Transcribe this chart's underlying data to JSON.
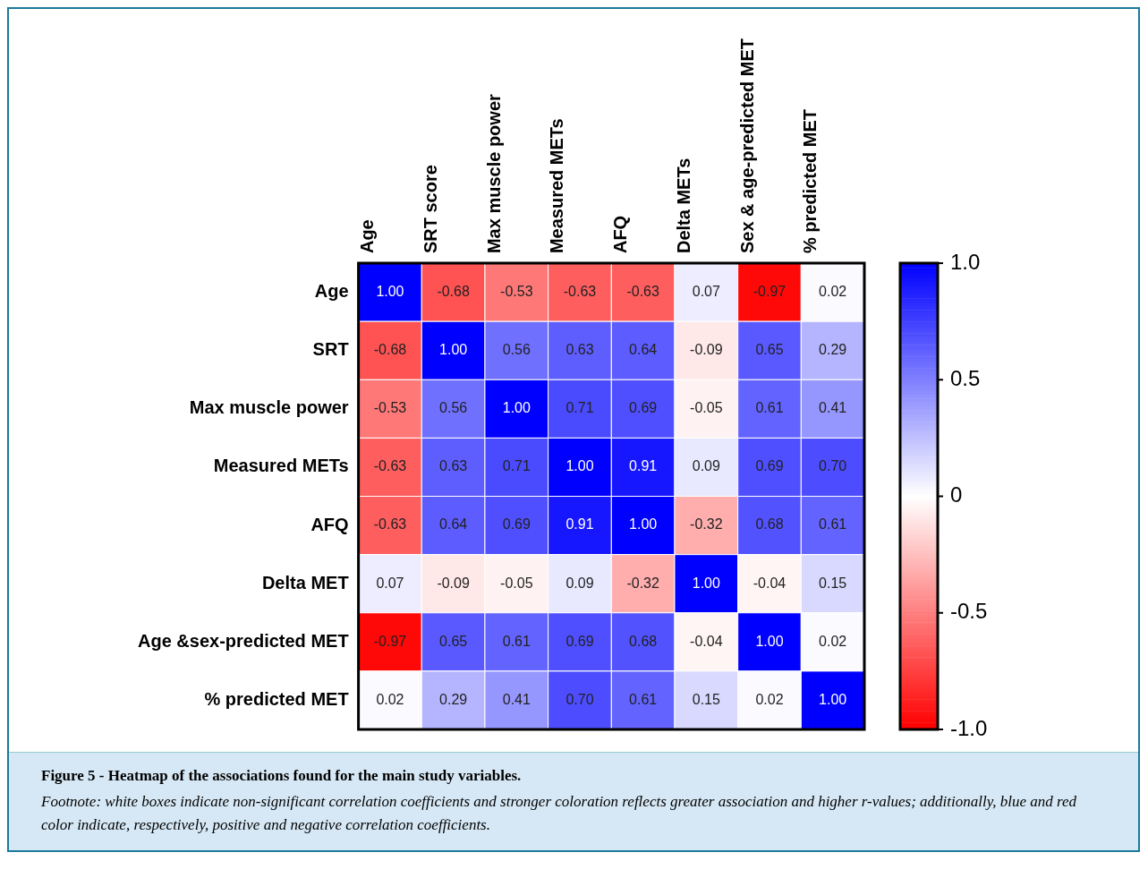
{
  "chart_data": {
    "type": "heatmap",
    "title": "Figure 5 - Heatmap of the associations found for the main study variables.",
    "annotations": [
      "Footnote: white boxes indicate non-significant correlation coefficients and stronger coloration reflects greater association and higher r-values; additionally, blue and red color indicate, respectively, positive and negative correlation coefficients."
    ],
    "categories": [
      "Age",
      "SRT score",
      "Max muscle power",
      "Measured METs",
      "AFQ",
      "Delta METs",
      "Sex & age-predicted MET",
      "% predicted MET"
    ],
    "y_categories": [
      "Age",
      "SRT",
      "Max muscle power",
      "Measured METs",
      "AFQ",
      "Delta MET",
      "Age &sex-predicted MET",
      "% predicted MET"
    ],
    "cells": [
      [
        1.0,
        -0.68,
        -0.53,
        -0.63,
        -0.63,
        0.07,
        -0.97,
        0.02
      ],
      [
        -0.68,
        1.0,
        0.56,
        0.63,
        0.64,
        -0.09,
        0.65,
        0.29
      ],
      [
        -0.53,
        0.56,
        1.0,
        0.71,
        0.69,
        -0.05,
        0.61,
        0.41
      ],
      [
        -0.63,
        0.63,
        0.71,
        1.0,
        0.91,
        0.09,
        0.69,
        0.7
      ],
      [
        -0.63,
        0.64,
        0.69,
        0.91,
        1.0,
        -0.32,
        0.68,
        0.61
      ],
      [
        0.07,
        -0.09,
        -0.05,
        0.09,
        -0.32,
        1.0,
        -0.04,
        0.15
      ],
      [
        -0.97,
        0.65,
        0.61,
        0.69,
        0.68,
        -0.04,
        1.0,
        0.02
      ],
      [
        0.02,
        0.29,
        0.41,
        0.7,
        0.61,
        0.15,
        0.02,
        1.0
      ]
    ],
    "cell_labels": [
      [
        "1.00",
        "-0.68",
        "-0.53",
        "-0.63",
        "-0.63",
        "0.07",
        "-0.97",
        "0.02"
      ],
      [
        "-0.68",
        "1.00",
        "0.56",
        "0.63",
        "0.64",
        "-0.09",
        "0.65",
        "0.29"
      ],
      [
        "-0.53",
        "0.56",
        "1.00",
        "0.71",
        "0.69",
        "-0.05",
        "0.61",
        "0.41"
      ],
      [
        "-0.63",
        "0.63",
        "0.71",
        "1.00",
        "0.91",
        "0.09",
        "0.69",
        "0.70"
      ],
      [
        "-0.63",
        "0.64",
        "0.69",
        "0.91",
        "1.00",
        "-0.32",
        "0.68",
        "0.61"
      ],
      [
        "0.07",
        "-0.09",
        "-0.05",
        "0.09",
        "-0.32",
        "1.00",
        "-0.04",
        "0.15"
      ],
      [
        "-0.97",
        "0.65",
        "0.61",
        "0.69",
        "0.68",
        "-0.04",
        "1.00",
        "0.02"
      ],
      [
        "0.02",
        "0.29",
        "0.41",
        "0.70",
        "0.61",
        "0.15",
        "0.02",
        "1.00"
      ]
    ],
    "clim": [
      -1,
      1
    ],
    "cticks": [
      {
        "value": 1,
        "label": "1.0"
      },
      0.5,
      0,
      -0.5,
      {
        "value": -1,
        "label": "-1.0"
      }
    ]
  }
}
